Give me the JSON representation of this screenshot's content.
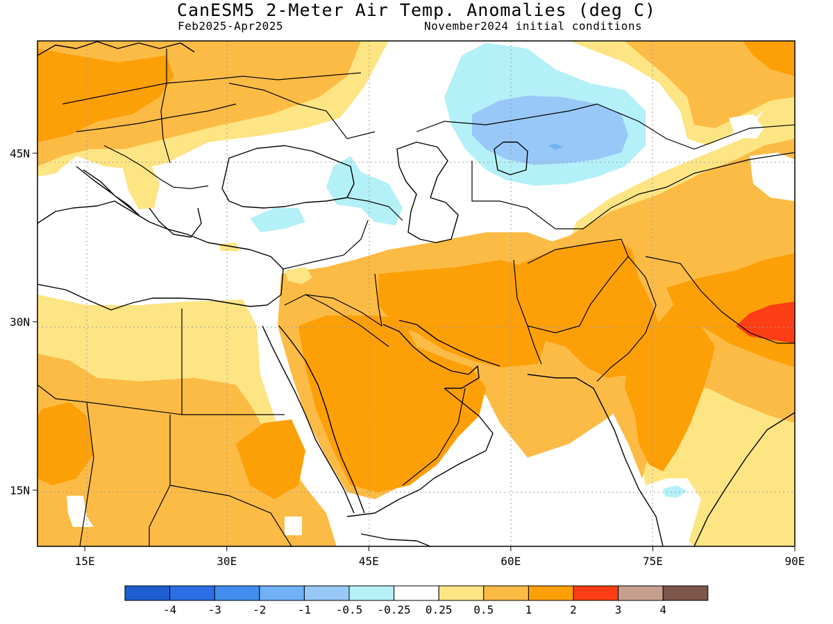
{
  "header": {
    "title": "CanESM5 2-Meter Air Temp. Anomalies (deg C)",
    "period": "Feb2025-Apr2025",
    "init": "November2024 initial conditions"
  },
  "map": {
    "lon_range": [
      10,
      90
    ],
    "lat_range": [
      10,
      55
    ],
    "lon_ticks": [
      {
        "value": 15,
        "label": "15E"
      },
      {
        "value": 30,
        "label": "30E"
      },
      {
        "value": 45,
        "label": "45E"
      },
      {
        "value": 60,
        "label": "60E"
      },
      {
        "value": 75,
        "label": "75E"
      },
      {
        "value": 90,
        "label": "90E"
      }
    ],
    "lat_ticks": [
      {
        "value": 45,
        "label": "45N"
      },
      {
        "value": 30,
        "label": "30N"
      },
      {
        "value": 15,
        "label": "15N"
      }
    ],
    "colors": {
      "ocean": "#ffffff",
      "coast": "#000000",
      "grid": "#9a9a9a"
    }
  },
  "colorbar": {
    "colors": [
      "#1c5ecf",
      "#2a6fe6",
      "#428eee",
      "#71b1f5",
      "#97c8f7",
      "#b4f0f7",
      "#ffffff",
      "#fee584",
      "#fcbb45",
      "#fd9f07",
      "#fd3d13",
      "#c69f8c",
      "#7c5648"
    ],
    "labels": [
      "-4",
      "-3",
      "-2",
      "-1",
      "-0.5",
      "-0.25",
      "0.25",
      "0.5",
      "1",
      "2",
      "3",
      "4"
    ]
  }
}
